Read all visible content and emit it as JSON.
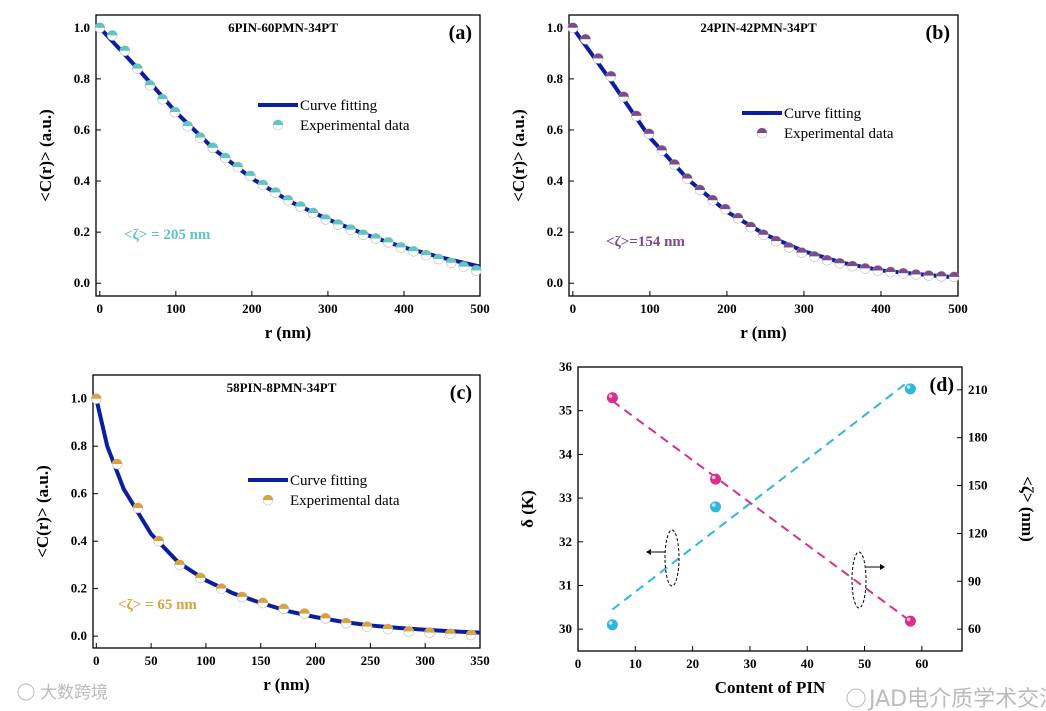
{
  "watermarks": [
    "JAD电介质学术交流",
    "大数跨境"
  ],
  "chart_data": [
    {
      "type": "scatter+line",
      "panel_label": "(a)",
      "title": "6PIN-60PMN-34PT",
      "xlabel": "r (nm)",
      "ylabel": "<C(r)> (a.u.)",
      "xlim": [
        -5,
        500
      ],
      "ylim": [
        -0.05,
        1.05
      ],
      "xticks": [
        0,
        100,
        200,
        300,
        400,
        500
      ],
      "yticks": [
        0.0,
        0.2,
        0.4,
        0.6,
        0.8,
        1.0
      ],
      "legend": [
        "Curve fitting",
        "Experimental data"
      ],
      "legend_position": "center-right",
      "annotation": "<ζ> = 205 nm",
      "color": "#5fc4c4",
      "fit_color": "#0b1f9e",
      "experimental": {
        "x": [
          0,
          16.5,
          33,
          49.5,
          66,
          82.5,
          99,
          115.5,
          132,
          148.5,
          165,
          181.5,
          198,
          214.5,
          231,
          247.5,
          264,
          280.5,
          297,
          313.5,
          330,
          346.5,
          363,
          379.5,
          396,
          412.5,
          429,
          445.5,
          462,
          478.5,
          495
        ],
        "y": [
          1.0,
          0.97,
          0.91,
          0.84,
          0.775,
          0.72,
          0.67,
          0.615,
          0.57,
          0.53,
          0.49,
          0.455,
          0.42,
          0.385,
          0.355,
          0.325,
          0.3,
          0.275,
          0.25,
          0.23,
          0.21,
          0.19,
          0.175,
          0.16,
          0.14,
          0.125,
          0.11,
          0.095,
          0.08,
          0.065,
          0.05
        ]
      },
      "fit": {
        "x": [
          0,
          50,
          100,
          150,
          200,
          250,
          300,
          350,
          400,
          450,
          500
        ],
        "y": [
          1.0,
          0.84,
          0.67,
          0.525,
          0.41,
          0.32,
          0.25,
          0.19,
          0.14,
          0.1,
          0.065
        ]
      }
    },
    {
      "type": "scatter+line",
      "panel_label": "(b)",
      "title": "24PIN-42PMN-34PT",
      "xlabel": "r (nm)",
      "ylabel": "<C(r)> (a.u.)",
      "xlim": [
        -5,
        500
      ],
      "ylim": [
        -0.05,
        1.05
      ],
      "xticks": [
        0,
        100,
        200,
        300,
        400,
        500
      ],
      "yticks": [
        0.0,
        0.2,
        0.4,
        0.6,
        0.8,
        1.0
      ],
      "legend": [
        "Curve fitting",
        "Experimental data"
      ],
      "legend_position": "center-right",
      "annotation": "<ζ>=154 nm",
      "color": "#7b4b8c",
      "fit_color": "#0b1f9e",
      "experimental": {
        "x": [
          0,
          16.5,
          33,
          49.5,
          66,
          82.5,
          99,
          115.5,
          132,
          148.5,
          165,
          181.5,
          198,
          214.5,
          231,
          247.5,
          264,
          280.5,
          297,
          313.5,
          330,
          346.5,
          363,
          379.5,
          396,
          412.5,
          429,
          445.5,
          462,
          478.5,
          495
        ],
        "y": [
          1.0,
          0.955,
          0.88,
          0.81,
          0.73,
          0.655,
          0.585,
          0.52,
          0.465,
          0.41,
          0.365,
          0.325,
          0.29,
          0.255,
          0.22,
          0.19,
          0.165,
          0.14,
          0.12,
          0.105,
          0.09,
          0.078,
          0.067,
          0.058,
          0.05,
          0.044,
          0.039,
          0.034,
          0.03,
          0.027,
          0.025
        ]
      },
      "fit": {
        "x": [
          0,
          50,
          100,
          150,
          200,
          250,
          300,
          350,
          400,
          450,
          500
        ],
        "y": [
          1.0,
          0.79,
          0.57,
          0.405,
          0.28,
          0.19,
          0.125,
          0.08,
          0.05,
          0.035,
          0.022
        ]
      }
    },
    {
      "type": "scatter+line",
      "panel_label": "(c)",
      "title": "58PIN-8PMN-34PT",
      "xlabel": "r (nm)",
      "ylabel": "<C(r)> (a.u.)",
      "xlim": [
        -3,
        350
      ],
      "ylim": [
        -0.05,
        1.1
      ],
      "xticks": [
        0,
        50,
        100,
        150,
        200,
        250,
        300,
        350
      ],
      "yticks": [
        0.0,
        0.2,
        0.4,
        0.6,
        0.8,
        1.0
      ],
      "legend": [
        "Curve fitting",
        "Experimental data"
      ],
      "legend_position": "center-right",
      "annotation": "<ζ> = 65 nm",
      "color": "#d9a23e",
      "fit_color": "#0b1f9e",
      "experimental": {
        "x": [
          0,
          19,
          38,
          57,
          76,
          95,
          114,
          133,
          152,
          171,
          190,
          209,
          228,
          247,
          266,
          285,
          304,
          323,
          342
        ],
        "y": [
          1.0,
          0.725,
          0.54,
          0.4,
          0.3,
          0.245,
          0.2,
          0.165,
          0.14,
          0.115,
          0.095,
          0.075,
          0.055,
          0.04,
          0.03,
          0.02,
          0.015,
          0.01,
          0.005
        ]
      },
      "fit": {
        "x": [
          0,
          10,
          25,
          50,
          75,
          100,
          125,
          150,
          175,
          200,
          225,
          250,
          275,
          300,
          325,
          350
        ],
        "y": [
          1.0,
          0.8,
          0.62,
          0.43,
          0.31,
          0.235,
          0.18,
          0.14,
          0.105,
          0.08,
          0.06,
          0.045,
          0.035,
          0.027,
          0.02,
          0.015
        ]
      }
    },
    {
      "type": "scatter+dual-axis",
      "panel_label": "(d)",
      "xlabel": "Content of PIN",
      "ylabel": "δ (K)",
      "y2label": "<ζ> (nm)",
      "xlim": [
        0,
        67
      ],
      "ylim": [
        29.5,
        36
      ],
      "y2lim": [
        46.3,
        224.3
      ],
      "xticks": [
        0,
        10,
        20,
        30,
        40,
        50,
        60
      ],
      "yticks": [
        30,
        31,
        32,
        33,
        34,
        35,
        36
      ],
      "y2ticks": [
        60,
        90,
        120,
        150,
        180,
        210
      ],
      "series": [
        {
          "name": "δ",
          "axis": "left",
          "color": "#2fb8dc",
          "x": [
            6,
            24,
            58
          ],
          "y": [
            30.1,
            32.8,
            35.5
          ],
          "fit": {
            "x": [
              6,
              57
            ],
            "y": [
              30.45,
              35.6
            ]
          }
        },
        {
          "name": "<ζ>",
          "axis": "right",
          "color": "#d8308a",
          "x": [
            6,
            24,
            58
          ],
          "y": [
            205,
            154,
            65
          ],
          "fit": {
            "x": [
              6,
              58
            ],
            "y": [
              203,
              65
            ]
          }
        }
      ]
    }
  ]
}
